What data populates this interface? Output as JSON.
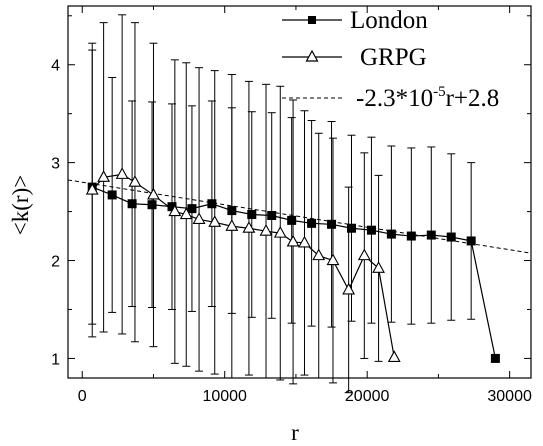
{
  "chart_data": {
    "type": "scatter",
    "xlabel": "r",
    "ylabel": "<k(r)>",
    "xlim": [
      -1000,
      31500
    ],
    "ylim": [
      0.8,
      4.6
    ],
    "xticks": [
      0,
      10000,
      20000,
      30000
    ],
    "yticks": [
      1,
      2,
      3,
      4
    ],
    "xtick_labels": [
      "0",
      "10000",
      "20000",
      "30000"
    ],
    "ytick_labels": [
      "1",
      "2",
      "3",
      "4"
    ],
    "legend_position": "top-right",
    "grid": false,
    "series": [
      {
        "name": "London",
        "marker": "filled-square",
        "color": "#000000",
        "x": [
          700,
          2100,
          3500,
          4900,
          6300,
          7700,
          9100,
          10500,
          11900,
          13300,
          14700,
          16100,
          17500,
          18900,
          20300,
          21700,
          23100,
          24500,
          25900,
          27300,
          29000
        ],
        "y": [
          2.75,
          2.67,
          2.58,
          2.57,
          2.55,
          2.53,
          2.58,
          2.51,
          2.47,
          2.46,
          2.41,
          2.38,
          2.37,
          2.33,
          2.31,
          2.27,
          2.25,
          2.26,
          2.24,
          2.2,
          1.0
        ],
        "error": [
          1.4,
          1.2,
          1.05,
          1.05,
          1.05,
          1.05,
          1.05,
          1.05,
          1.05,
          1.05,
          1.05,
          1.05,
          1.05,
          0.95,
          0.95,
          0.9,
          0.9,
          0.9,
          0.85,
          0.8,
          0
        ]
      },
      {
        "name": "GRPG",
        "marker": "open-triangle",
        "color": "#000000",
        "x": [
          700,
          1500,
          2800,
          3700,
          5000,
          6500,
          7300,
          8200,
          9300,
          10500,
          11700,
          12900,
          13900,
          14800,
          15600,
          16600,
          17600,
          18700,
          19800,
          20800,
          21900
        ],
        "y": [
          2.72,
          2.85,
          2.88,
          2.8,
          2.67,
          2.5,
          2.47,
          2.42,
          2.39,
          2.35,
          2.33,
          2.3,
          2.28,
          2.19,
          2.18,
          2.05,
          2.0,
          1.7,
          2.05,
          1.92,
          1.01
        ],
        "error": [
          1.5,
          1.58,
          1.63,
          1.63,
          1.55,
          1.55,
          1.55,
          1.55,
          1.55,
          1.55,
          1.5,
          1.5,
          1.5,
          1.45,
          1.35,
          1.25,
          1.25,
          1.05,
          1.05,
          0.95,
          0
        ]
      },
      {
        "name": "-2.3*10^-5 r+2.8",
        "type": "line",
        "style": "dashed",
        "color": "#000000",
        "x": [
          -1000,
          31500
        ],
        "y": [
          2.823,
          2.0755
        ]
      }
    ],
    "legend": [
      {
        "text": "London",
        "marker": "filled-square"
      },
      {
        "text": "GRPG",
        "marker": "open-triangle"
      },
      {
        "text_main": "-2.3*10",
        "text_exp": "-5",
        "text_tail": "r+2.8",
        "marker": "dashed-line"
      }
    ]
  }
}
